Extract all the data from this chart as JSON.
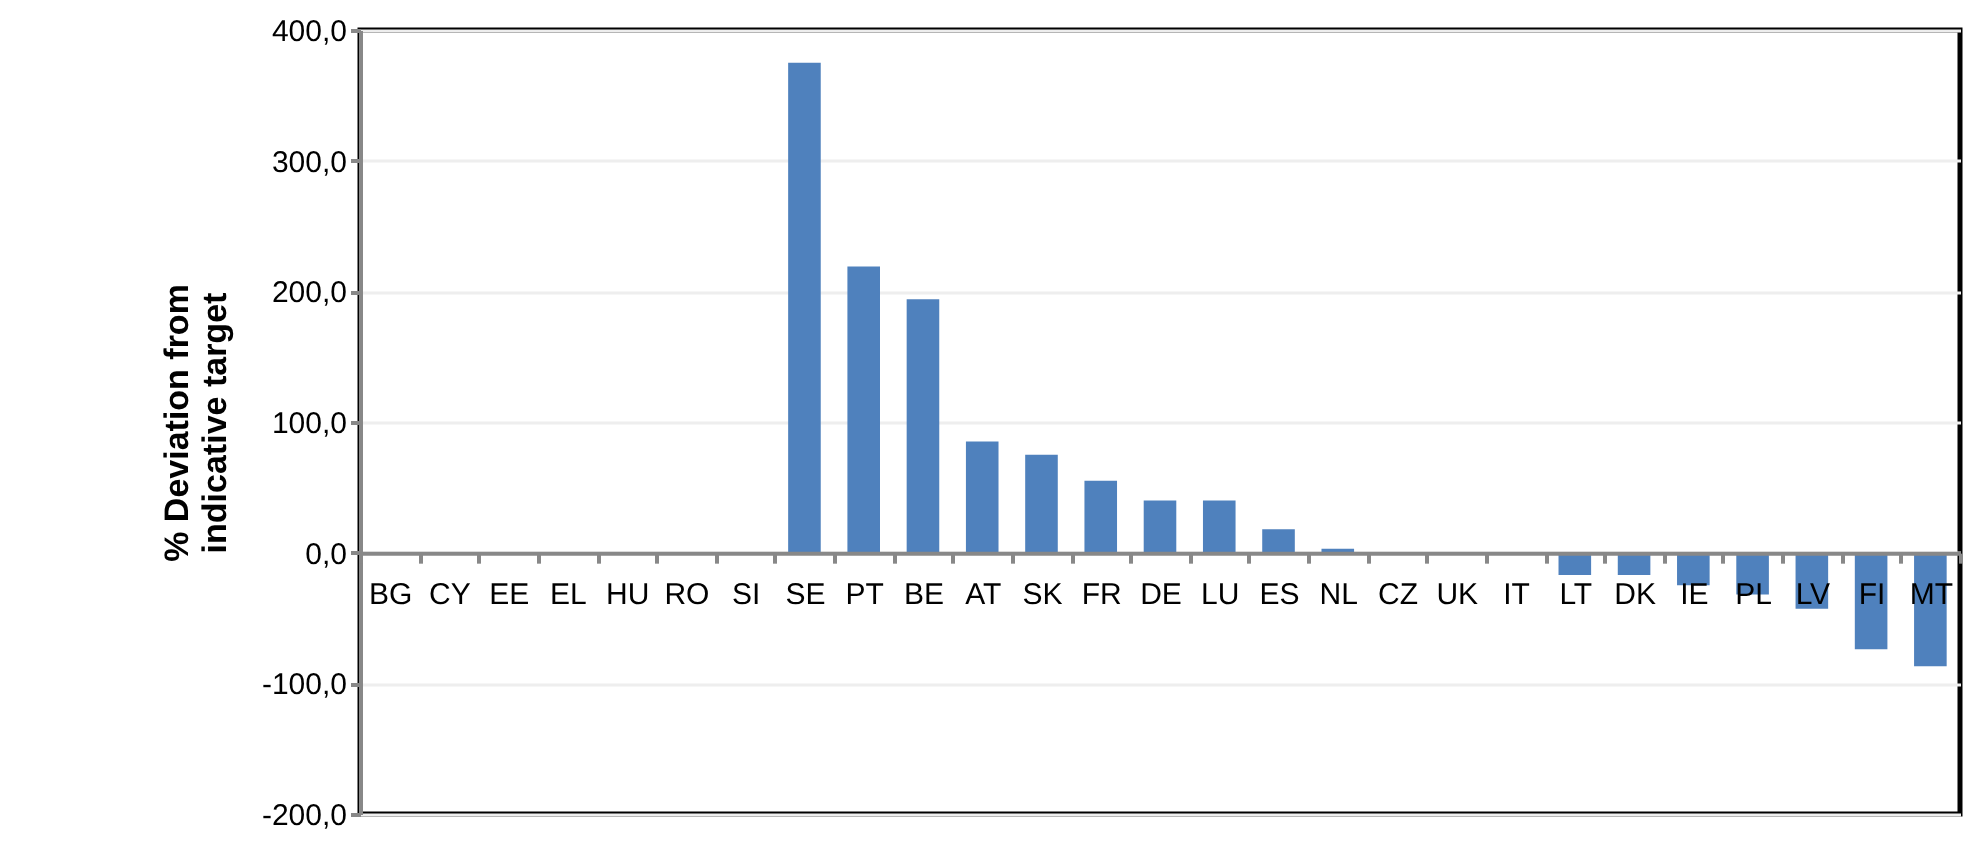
{
  "chart_data": {
    "type": "bar",
    "ylabel": "% Deviation from indicative target",
    "categories": [
      "BG",
      "CY",
      "EE",
      "EL",
      "HU",
      "RO",
      "SI",
      "SE",
      "PT",
      "BE",
      "AT",
      "SK",
      "FR",
      "DE",
      "LU",
      "ES",
      "NL",
      "CZ",
      "UK",
      "IT",
      "LT",
      "DK",
      "IE",
      "PL",
      "LV",
      "FI",
      "MT"
    ],
    "values": [
      0,
      0,
      0,
      0,
      0,
      0,
      0,
      375,
      219,
      194,
      85,
      75,
      55,
      40,
      40,
      18,
      3,
      0,
      0,
      0,
      -17,
      -17,
      -25,
      -32,
      -43,
      -74,
      -87
    ],
    "color": "#4f81bd",
    "ylim": [
      -200,
      400
    ],
    "yticks": [
      {
        "value": -200,
        "label": "-200,0"
      },
      {
        "value": -100,
        "label": "-100,0"
      },
      {
        "value": 0,
        "label": "0,0"
      },
      {
        "value": 100,
        "label": "100,0"
      },
      {
        "value": 200,
        "label": "200,0"
      },
      {
        "value": 300,
        "label": "300,0"
      },
      {
        "value": 400,
        "label": "400,0"
      }
    ],
    "grid": "y"
  }
}
